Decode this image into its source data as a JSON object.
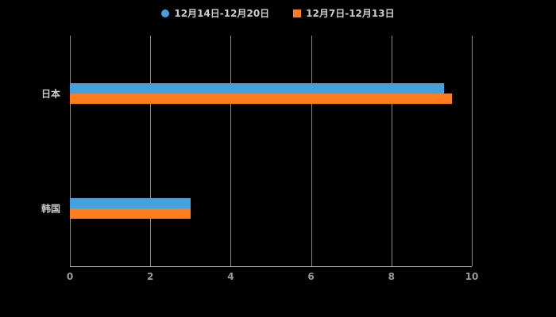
{
  "legend": {
    "items": [
      {
        "label": "12月14日-12月20日",
        "color": "#45a1dd",
        "marker": "circle"
      },
      {
        "label": "12月7日-12月13日",
        "color": "#ff7d1e",
        "marker": "square"
      }
    ]
  },
  "chart_data": {
    "type": "bar",
    "orientation": "horizontal",
    "title": "",
    "xlabel": "",
    "ylabel": "",
    "categories": [
      "日本",
      "韩国"
    ],
    "series": [
      {
        "name": "12月14日-12月20日",
        "color": "#45a1dd",
        "values": [
          9.3,
          3
        ]
      },
      {
        "name": "12月7日-12月13日",
        "color": "#ff7d1e",
        "values": [
          9.5,
          3
        ]
      }
    ],
    "xlim": [
      0,
      10
    ],
    "xticks": [
      0,
      2,
      4,
      6,
      8,
      10
    ],
    "grid": true,
    "legend_position": "top",
    "background": "#000000"
  }
}
